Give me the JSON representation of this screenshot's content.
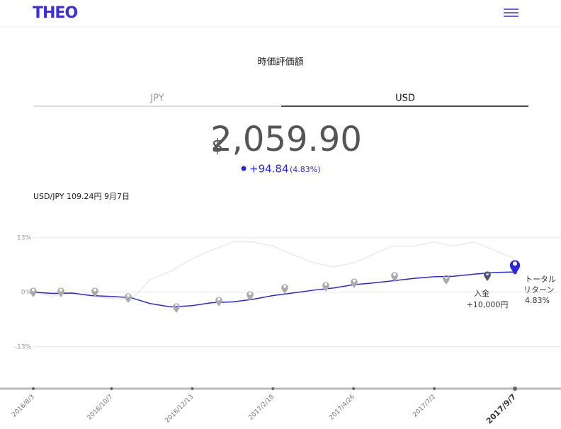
{
  "header": {
    "logo": "THEO"
  },
  "title": "時価評価額",
  "tabs": [
    "JPY",
    "USD"
  ],
  "balance": {
    "currency": "$",
    "amount": "2,059.90",
    "change": "+94.84",
    "change_pct": "(4.83%)"
  },
  "fx": "USD/JPY 109.24円 9月7日",
  "chart_data": {
    "type": "line",
    "x": [
      "2016/8/3",
      "2016/8/19",
      "2016/9/4",
      "2016/9/20",
      "2016/10/7",
      "2016/10/23",
      "2016/11/8",
      "2016/11/25",
      "2016/12/13",
      "2016/12/29",
      "2017/1/16",
      "2017/2/1",
      "2017/2/18",
      "2017/3/6",
      "2017/3/24",
      "2017/4/9",
      "2017/4/26",
      "2017/5/12",
      "2017/5/28",
      "2017/6/15",
      "2017/7/2",
      "2017/7/18",
      "2017/8/4",
      "2017/8/21",
      "2017/9/7"
    ],
    "series": [
      {
        "color": "#e3e6f0",
        "values": [
          0,
          -1,
          0,
          -1,
          -1.5,
          -2,
          3,
          5,
          8,
          10,
          12,
          12,
          11,
          9,
          7,
          6,
          7,
          9,
          11,
          11,
          12,
          11,
          12,
          10,
          8
        ]
      },
      {
        "color": "#2a2ad8",
        "values": [
          0,
          -0.3,
          -0.2,
          -0.8,
          -1,
          -1.3,
          -2.7,
          -3.5,
          -3.2,
          -2.5,
          -2.3,
          -1.7,
          -0.8,
          -0.2,
          0.5,
          1,
          1.8,
          2.2,
          2.7,
          3.3,
          3.7,
          3.8,
          4.3,
          4.7,
          4.83
        ]
      }
    ],
    "ylim": [
      -23,
      16
    ],
    "yticks": [
      {
        "value": 13,
        "label": "13%"
      },
      {
        "value": 0,
        "label": "0%"
      },
      {
        "value": -13,
        "label": "-13%"
      }
    ],
    "xticks": [
      "2016/8/3",
      "2016/10/7",
      "2016/12/13",
      "2017/2/18",
      "2017/4/26",
      "2017/7/2",
      "2017/9/7"
    ],
    "grid": true,
    "annotations": [
      "入金",
      "+10,000円",
      "トータル",
      "リターン",
      "4.83%"
    ]
  }
}
